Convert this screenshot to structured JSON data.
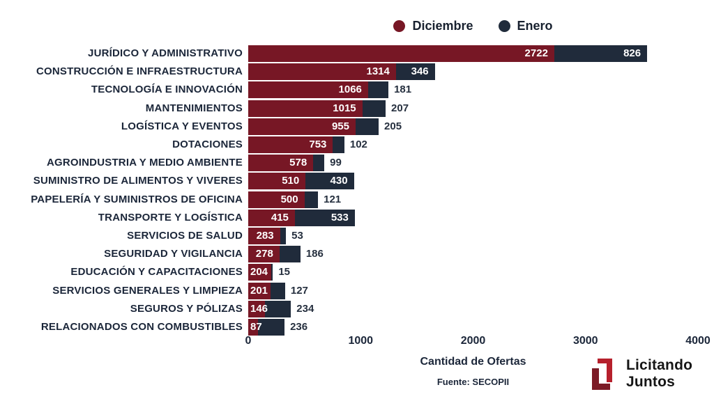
{
  "chart_data": {
    "type": "bar",
    "orientation": "horizontal",
    "stacked": true,
    "title": "",
    "xlabel": "Cantidad de Ofertas",
    "ylabel": "",
    "xlim": [
      0,
      4000
    ],
    "x_ticks": [
      0,
      1000,
      2000,
      3000,
      4000
    ],
    "grid": false,
    "legend_position": "top",
    "categories": [
      "JURÍDICO Y ADMINISTRATIVO",
      "CONSTRUCCIÓN E INFRAESTRUCTURA",
      "TECNOLOGÍA E INNOVACIÓN",
      "MANTENIMIENTOS",
      "LOGÍSTICA Y EVENTOS",
      "DOTACIONES",
      "AGROINDUSTRIA Y MEDIO AMBIENTE",
      "SUMINISTRO DE ALIMENTOS Y VIVERES",
      "PAPELERÍA Y SUMINISTROS DE OFICINA",
      "TRANSPORTE Y LOGÍSTICA",
      "SERVICIOS DE SALUD",
      "SEGURIDAD Y VIGILANCIA",
      "EDUCACIÓN Y CAPACITACIONES",
      "SERVICIOS GENERALES Y LIMPIEZA",
      "SEGUROS Y PÓLIZAS",
      "RELACIONADOS CON COMBUSTIBLES"
    ],
    "series": [
      {
        "name": "Diciembre",
        "color": "#771725",
        "values": [
          2722,
          1314,
          1066,
          1015,
          955,
          753,
          578,
          510,
          500,
          415,
          283,
          278,
          204,
          201,
          146,
          87
        ]
      },
      {
        "name": "Enero",
        "color": "#202b3b",
        "values": [
          826,
          346,
          181,
          207,
          205,
          102,
          99,
          430,
          121,
          533,
          53,
          186,
          15,
          127,
          234,
          236
        ]
      }
    ]
  },
  "source": "Fuente: SECOPII",
  "branding": {
    "line1": "Licitando",
    "line2": "Juntos",
    "mark_color_dark": "#7c1b26",
    "mark_color_bright": "#b6202c"
  }
}
